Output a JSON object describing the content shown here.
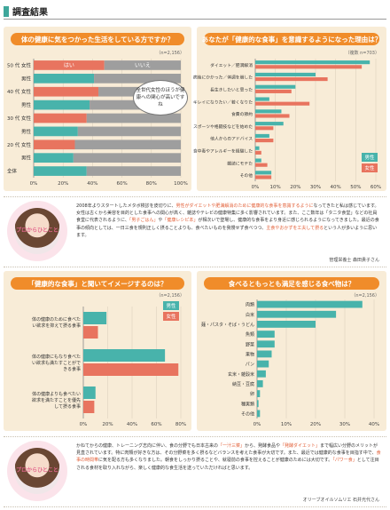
{
  "section": {
    "title": "調査結果"
  },
  "chart_data": [
    {
      "type": "bar",
      "title": "体の健康に気をつかった生活をしている方ですか？",
      "note": "（n=2,156）",
      "legend_labels": [
        "はい",
        "いいえ"
      ],
      "callout": "全世代女性のほうが健康への関心が高いですね",
      "categories": [
        "50代 女性",
        "50代 男性",
        "40代 女性",
        "40代 男性",
        "30代 女性",
        "30代 男性",
        "20代 女性",
        "20代 男性",
        "全体"
      ],
      "group_labels": [
        "50 代",
        "40 代",
        "30 代",
        "20 代",
        "全体"
      ],
      "sub_labels": [
        "女性",
        "男性",
        "女性",
        "男性",
        "女性",
        "男性",
        "女性",
        "男性",
        ""
      ],
      "series": [
        {
          "name": "はい",
          "values": [
            48,
            41,
            44,
            38,
            36,
            30,
            28,
            27,
            36
          ]
        },
        {
          "name": "いいえ",
          "values": [
            52,
            59,
            56,
            62,
            64,
            70,
            72,
            73,
            64
          ]
        }
      ],
      "ticks": [
        "0%",
        "20%",
        "40%",
        "60%",
        "80%",
        "100%"
      ],
      "ylim": [
        0,
        100
      ],
      "colors": {
        "female": "#e8745f",
        "male": "#48b3ab",
        "total": "#48b3ab",
        "no": "#9e9e9e"
      }
    },
    {
      "type": "bar",
      "title": "あなたが「健康的な食事」を意識するようになった理由は？",
      "note": "（複数 n=703）",
      "categories": [
        "ダイエット／肥満解消",
        "病後にかかった／体調を崩した",
        "長生きしたいと思った",
        "キレイになりたい／若くなりたい",
        "食費の節約",
        "スポーツや格闘技などを始めた",
        "他人からのアドバイス",
        "食中毒やアレルギーを経験した",
        "雑誌にモテた",
        "その他"
      ],
      "series": [
        {
          "name": "男性",
          "values": [
            57,
            30,
            20,
            7,
            13,
            14,
            7,
            2,
            3,
            8
          ]
        },
        {
          "name": "女性",
          "values": [
            53,
            36,
            18,
            27,
            17,
            9,
            9,
            3,
            6,
            8
          ]
        }
      ],
      "ticks": [
        "0%",
        "10%",
        "20%",
        "30%",
        "40%",
        "50%",
        "60%"
      ],
      "ylim": [
        0,
        60
      ],
      "colors": {
        "male": "#48b3ab",
        "female": "#e8745f"
      }
    },
    {
      "type": "bar",
      "title": "「健康的な食事」と聞いてイメージするのは？",
      "note": "（n=2,156）",
      "categories": [
        "体の健康のために食べたい欲求を抑えて摂る食事",
        "体の健康にもなり食べたい欲求も満たすことができる食事",
        "体の健康よりも食べたい欲求を満たすことを優先して摂る食事"
      ],
      "series": [
        {
          "name": "男性",
          "values": [
            19,
            67,
            10
          ]
        },
        {
          "name": "女性",
          "values": [
            12,
            78,
            9
          ]
        }
      ],
      "ticks": [
        "0%",
        "20%",
        "40%",
        "60%",
        "80%"
      ],
      "ylim": [
        0,
        80
      ],
      "colors": {
        "male": "#48b3ab",
        "female": "#e8745f"
      }
    },
    {
      "type": "bar",
      "title": "食べるともっとも満足を感じる食べ物は？",
      "note": "（n=2,156）",
      "categories": [
        "肉類",
        "白米",
        "麺・パスタ・そば・うどん",
        "魚類",
        "野菜",
        "果物",
        "パン",
        "玄米・雑穀米",
        "納豆・豆腐",
        "卵",
        "種実類",
        "その他"
      ],
      "values": [
        36,
        27,
        20,
        6,
        6,
        5,
        4,
        3,
        2,
        1,
        0.5,
        1
      ],
      "ticks": [
        "0%",
        "10%",
        "20%",
        "30%",
        "40%"
      ],
      "ylim": [
        0,
        40
      ],
      "colors": {
        "bar": "#48b3ab"
      }
    }
  ],
  "profile1": {
    "ring": "プロからひとこと",
    "text_a": "2008年よりスタートしたメタボ検診を皮切りに、",
    "hl1": "男性がダイエットや肥満解消のために健康的な食事を意識するように",
    "text_b": "なってきたと私は感じています。女性は古くから美容を目的とした食事への関心が高く、雑誌やテレビの健康特集に多く影響されています。また、ここ数年は「タニタ食堂」などの社員食堂に代表されるように、",
    "hl2": "「男子ごはん」",
    "text_c": "や",
    "hl3": "「健康レシピ本」",
    "text_d": "が相次いで登場し、健康的な食事をより身近に感じられるようになってきました。最近の食事の傾向としては、一日三食を規則正しく摂ることよりも、食べたいものを我慢せず食べつつ、",
    "hl4": "主食やおかずを工夫して摂る",
    "text_e": "という人が多いように思います。",
    "signature": "管理栄養士 森田貴子さん"
  },
  "profile2": {
    "ring": "プロからひとこと",
    "text_a": "かねてからの健康、トレーニング志向に伴い、食の分野でも日本古来の",
    "hl1": "「一汁三菜」",
    "text_b": "から、発酵食品や",
    "hl2": "「発酵ダイエット」",
    "text_c": "まで幅広い分野のメリットが見直されています。特に肉類が好きな方は、その分野菜を多く摂るなどバランスを考えた食事が大切です。また、最近では健康的な食事を目指す中で、",
    "hl3": "食事の時間帯",
    "text_d": "に気を配る方も多くなりました。朝食をしっかり摂ることや、就寝前の食事を控えることが健康のためには大切です。",
    "hl4": "「パワー食」",
    "text_e": "として注目される食材を取り入れながら、楽しく健康的な食生活を送っていただければと思います。",
    "signature": "オリーブオイルソムリエ 石井光代さん"
  }
}
